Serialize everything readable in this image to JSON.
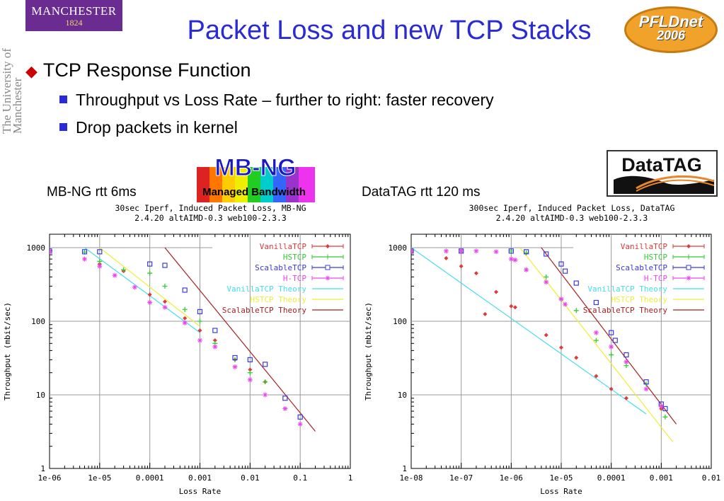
{
  "slide": {
    "title": "Packet Loss and new TCP Stacks",
    "bullet1": "TCP Response Function",
    "sub1": "Throughput vs Loss Rate – further to right: faster recovery",
    "sub2": "Drop packets in kernel"
  },
  "logos": {
    "manchester_name": "MANCHESTER",
    "manchester_year": "1824",
    "university_text": "The University of Manchester",
    "pfldnet_line1": "PFLDnet",
    "pfldnet_line2": "2006",
    "mbng_title": "MB-NG",
    "mbng_sub": "Managed Bandwidth",
    "datatag": "DataTAG"
  },
  "captions": {
    "left": "MB-NG rtt 6ms",
    "right": "DataTAG rtt 120 ms"
  },
  "colors": {
    "title": "#2a2ad6",
    "vanilla": "#e03a3a",
    "hstcp": "#33cc33",
    "scalable": "#3a3ae0",
    "htcp": "#ee44ee",
    "vanilla_theory": "#44ddee",
    "hstcp_theory": "#eeee33",
    "scalable_theory": "#a82020"
  },
  "chart_data": [
    {
      "type": "scatter",
      "title": "30sec Iperf, Induced Packet Loss, MB-NG",
      "subtitle": "2.4.20 altAIMD-0.3 web100-2.3.3",
      "xlabel": "Loss Rate",
      "ylabel": "Throughput (mbit/sec)",
      "xscale": "log",
      "yscale": "log",
      "xlim": [
        1e-06,
        1
      ],
      "ylim": [
        1,
        2000
      ],
      "xticks": [
        "1e-06",
        "1e-05",
        "0.0001",
        "0.001",
        "0.01",
        "0.1",
        "1"
      ],
      "yticks": [
        "1",
        "10",
        "100",
        "1000"
      ],
      "legend": "top-right",
      "series": [
        {
          "name": "VanillaTCP",
          "key": "vanilla",
          "kind": "points",
          "marker": "diamond",
          "points": [
            [
              1e-06,
              900
            ],
            [
              1e-05,
              600
            ],
            [
              3e-05,
              480
            ],
            [
              0.0001,
              230
            ],
            [
              0.0002,
              185
            ],
            [
              0.0005,
              110
            ],
            [
              0.001,
              75
            ],
            [
              0.002,
              55
            ],
            [
              0.005,
              30
            ],
            [
              0.01,
              22
            ],
            [
              0.02,
              15
            ]
          ]
        },
        {
          "name": "HSTCP",
          "key": "hstcp",
          "kind": "points",
          "marker": "plus",
          "points": [
            [
              1e-06,
              900
            ],
            [
              5e-06,
              870
            ],
            [
              1e-05,
              650
            ],
            [
              3e-05,
              500
            ],
            [
              0.0001,
              450
            ],
            [
              0.0002,
              300
            ],
            [
              0.0005,
              145
            ],
            [
              0.001,
              100
            ],
            [
              0.002,
              50
            ],
            [
              0.005,
              30
            ],
            [
              0.01,
              20
            ],
            [
              0.02,
              15
            ]
          ]
        },
        {
          "name": "ScalableTCP",
          "key": "scalable",
          "kind": "points",
          "marker": "box",
          "points": [
            [
              1e-06,
              900
            ],
            [
              5e-06,
              880
            ],
            [
              1e-05,
              880
            ],
            [
              0.0001,
              600
            ],
            [
              0.0002,
              575
            ],
            [
              0.0005,
              265
            ],
            [
              0.001,
              135
            ],
            [
              0.002,
              75
            ],
            [
              0.005,
              32
            ],
            [
              0.01,
              30
            ],
            [
              0.02,
              26
            ],
            [
              0.05,
              9
            ],
            [
              0.1,
              5
            ]
          ]
        },
        {
          "name": "H-TCP",
          "key": "htcp",
          "kind": "points",
          "marker": "star",
          "points": [
            [
              1e-06,
              880
            ],
            [
              5e-06,
              700
            ],
            [
              1e-05,
              560
            ],
            [
              2e-05,
              420
            ],
            [
              5e-05,
              290
            ],
            [
              0.0001,
              180
            ],
            [
              0.0002,
              155
            ],
            [
              0.0005,
              95
            ],
            [
              0.001,
              55
            ],
            [
              0.002,
              45
            ],
            [
              0.005,
              24
            ],
            [
              0.01,
              16
            ],
            [
              0.02,
              10
            ],
            [
              0.05,
              6.5
            ],
            [
              0.1,
              4
            ]
          ]
        },
        {
          "name": "VanillaTCP Theory",
          "key": "vanilla_theory",
          "kind": "line",
          "points": [
            [
              5e-06,
              1000
            ],
            [
              0.001,
              70
            ]
          ]
        },
        {
          "name": "HSTCP Theory",
          "key": "hstcp_theory",
          "kind": "line",
          "points": [
            [
              1e-05,
              1000
            ],
            [
              0.001,
              85
            ]
          ]
        },
        {
          "name": "ScalableTCP Theory",
          "key": "scalable_theory",
          "kind": "line",
          "points": [
            [
              0.0002,
              1000
            ],
            [
              0.2,
              3.2
            ]
          ]
        }
      ]
    },
    {
      "type": "scatter",
      "title": "300sec Iperf, Induced Packet Loss, DataTAG",
      "subtitle": "2.4.20 altAIMD-0.3 web100-2.3.3",
      "xlabel": "Loss Rate",
      "ylabel": "Throughput (mbit/sec)",
      "xscale": "log",
      "yscale": "log",
      "xlim": [
        1e-08,
        0.01
      ],
      "ylim": [
        1,
        2000
      ],
      "xticks": [
        "1e-08",
        "1e-07",
        "1e-06",
        "1e-05",
        "0.0001",
        "0.001",
        "0.01"
      ],
      "yticks": [
        "1",
        "10",
        "100",
        "1000"
      ],
      "legend": "top-right",
      "series": [
        {
          "name": "VanillaTCP",
          "key": "vanilla",
          "kind": "points",
          "marker": "diamond",
          "points": [
            [
              1e-08,
              900
            ],
            [
              5e-08,
              720
            ],
            [
              1e-07,
              560
            ],
            [
              2e-07,
              450
            ],
            [
              3e-07,
              125
            ],
            [
              5e-07,
              250
            ],
            [
              1e-06,
              160
            ],
            [
              1.2e-06,
              155
            ],
            [
              5e-06,
              65
            ],
            [
              1e-05,
              44
            ],
            [
              2e-05,
              32
            ],
            [
              5e-05,
              18
            ],
            [
              0.0001,
              12
            ],
            [
              0.0002,
              9
            ],
            [
              0.001,
              6.5
            ]
          ]
        },
        {
          "name": "HSTCP",
          "key": "hstcp",
          "kind": "points",
          "marker": "plus",
          "points": [
            [
              1e-08,
              900
            ],
            [
              1e-07,
              900
            ],
            [
              1e-06,
              900
            ],
            [
              2e-06,
              850
            ],
            [
              5e-06,
              400
            ],
            [
              1e-05,
              200
            ],
            [
              2e-05,
              140
            ],
            [
              5e-05,
              55
            ],
            [
              0.0001,
              35
            ],
            [
              0.0002,
              25
            ],
            [
              0.0005,
              14
            ],
            [
              0.001,
              7
            ],
            [
              0.0012,
              5
            ]
          ]
        },
        {
          "name": "ScalableTCP",
          "key": "scalable",
          "kind": "points",
          "marker": "box",
          "points": [
            [
              1e-08,
              900
            ],
            [
              1e-07,
              900
            ],
            [
              1e-06,
              900
            ],
            [
              2e-06,
              880
            ],
            [
              5e-06,
              820
            ],
            [
              1e-05,
              600
            ],
            [
              1.2e-05,
              480
            ],
            [
              2e-05,
              330
            ],
            [
              5e-05,
              180
            ],
            [
              0.0001,
              70
            ],
            [
              0.00012,
              55
            ],
            [
              0.0002,
              35
            ],
            [
              0.0005,
              15
            ],
            [
              0.001,
              7.5
            ],
            [
              0.0012,
              6.5
            ]
          ]
        },
        {
          "name": "H-TCP",
          "key": "htcp",
          "kind": "points",
          "marker": "star",
          "points": [
            [
              1e-08,
              900
            ],
            [
              5e-08,
              900
            ],
            [
              1e-07,
              900
            ],
            [
              2e-07,
              900
            ],
            [
              5e-07,
              880
            ],
            [
              1e-06,
              700
            ],
            [
              1.2e-06,
              680
            ],
            [
              2e-06,
              500
            ],
            [
              5e-06,
              340
            ],
            [
              1e-05,
              200
            ],
            [
              1.2e-05,
              170
            ],
            [
              5e-05,
              70
            ],
            [
              0.0001,
              45
            ],
            [
              0.0002,
              28
            ],
            [
              0.0005,
              12
            ],
            [
              0.001,
              7
            ]
          ]
        },
        {
          "name": "VanillaTCP Theory",
          "key": "vanilla_theory",
          "kind": "line",
          "points": [
            [
              1e-08,
              1000
            ],
            [
              0.0005,
              5.5
            ]
          ]
        },
        {
          "name": "HSTCP Theory",
          "key": "hstcp_theory",
          "kind": "line",
          "points": [
            [
              1.5e-06,
              1000
            ],
            [
              0.0017,
              2.3
            ]
          ]
        },
        {
          "name": "ScalableTCP Theory",
          "key": "scalable_theory",
          "kind": "line",
          "points": [
            [
              4e-06,
              1000
            ],
            [
              0.002,
              4
            ]
          ]
        }
      ]
    }
  ]
}
